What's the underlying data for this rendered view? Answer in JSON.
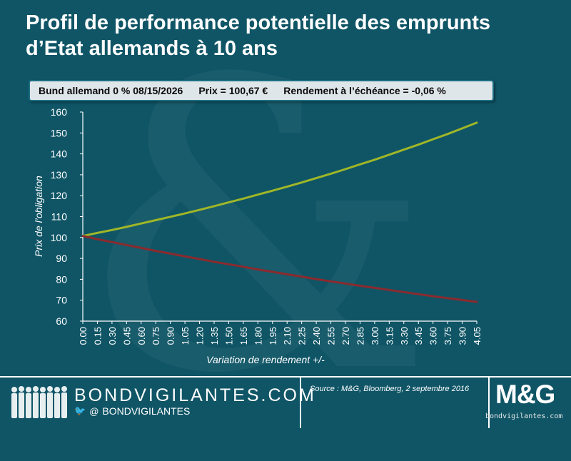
{
  "title_line1": "Profil de performance potentielle des emprunts",
  "title_line2": "d’Etat allemands à 10 ans",
  "info": {
    "bond": "Bund allemand 0 % 08/15/2026",
    "price": "Prix = 100,67 €",
    "yield": "Rendement à l’échéance = -0,06 %"
  },
  "chart_data": {
    "type": "line",
    "title": "",
    "xlabel": "Variation de rendement +/-",
    "ylabel": "Prix de l’obligation",
    "ylim": [
      60,
      160
    ],
    "yticks": [
      "60",
      "70",
      "80",
      "90",
      "100",
      "110",
      "120",
      "130",
      "140",
      "150",
      "160"
    ],
    "x": [
      "0.00",
      "0.15",
      "0.30",
      "0.45",
      "0.60",
      "0.75",
      "0.90",
      "1.05",
      "1.20",
      "1.35",
      "1.50",
      "1.65",
      "1.80",
      "1.95",
      "2.10",
      "2.25",
      "2.40",
      "2.55",
      "2.70",
      "2.85",
      "3.00",
      "3.15",
      "3.30",
      "3.45",
      "3.60",
      "3.75",
      "3.90",
      "4.05"
    ],
    "grid": false,
    "legend": "none",
    "series": [
      {
        "color": "#9fb628",
        "values": [
          100.7,
          102.2,
          103.6,
          105.1,
          106.7,
          108.3,
          109.9,
          111.5,
          113.2,
          115.0,
          116.8,
          118.6,
          120.5,
          122.4,
          124.3,
          126.3,
          128.4,
          130.5,
          132.7,
          135.0,
          137.2,
          139.6,
          142.0,
          144.4,
          147.0,
          149.5,
          152.2,
          154.9
        ]
      },
      {
        "color": "#8b2a2e",
        "values": [
          100.7,
          99.2,
          97.8,
          96.4,
          95.0,
          93.6,
          92.3,
          91.0,
          89.7,
          88.4,
          87.2,
          86.0,
          84.7,
          83.6,
          82.4,
          81.3,
          80.1,
          79.0,
          78.0,
          76.9,
          75.9,
          74.9,
          73.9,
          72.9,
          71.9,
          71.0,
          70.1,
          69.2
        ]
      }
    ]
  },
  "footer": {
    "brand": "BONDVIGILANTES.COM",
    "social_handle": "BONDVIGILANTES",
    "twitter_icon": "twitter-icon",
    "at_symbol": "@",
    "source": "Source : M&G, Bloomberg, 2 septembre 2016",
    "logo": "M&G",
    "watermark": "bondvigilantes.com"
  }
}
